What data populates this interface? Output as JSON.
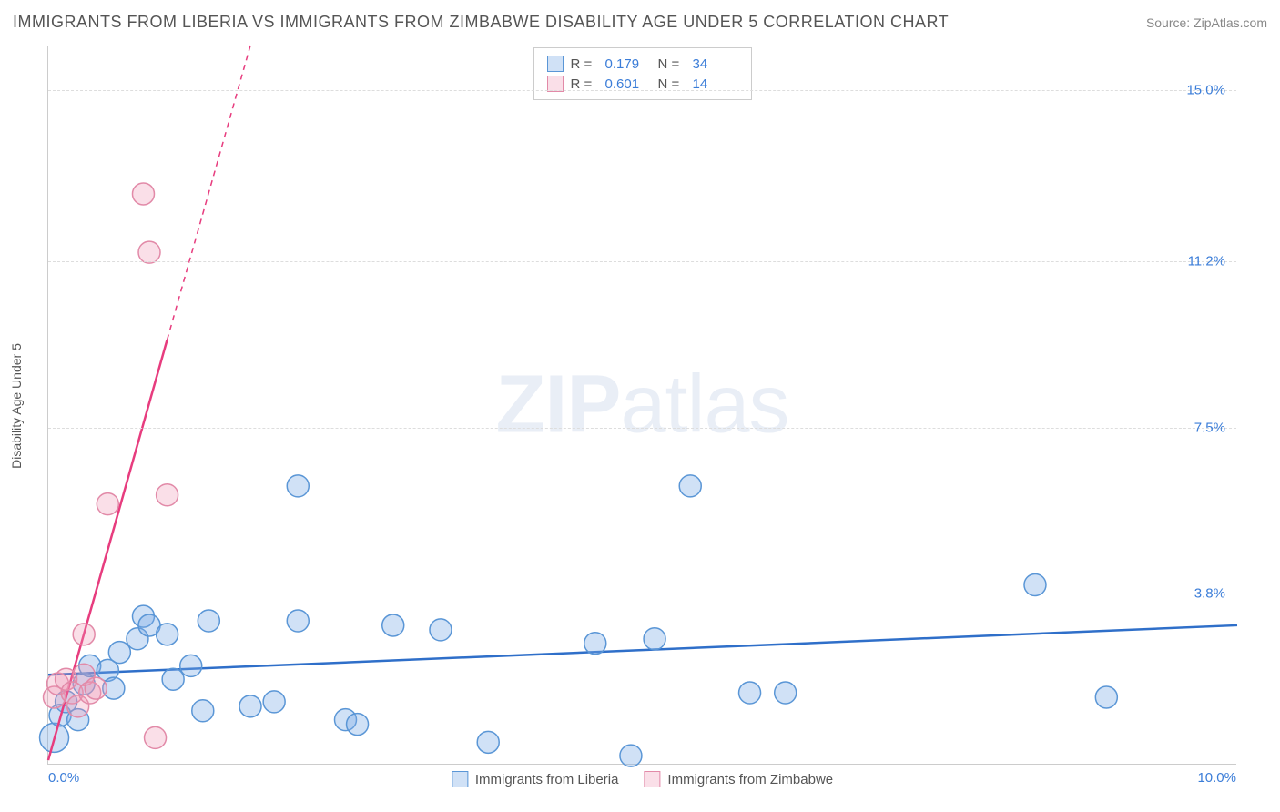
{
  "title": "IMMIGRANTS FROM LIBERIA VS IMMIGRANTS FROM ZIMBABWE DISABILITY AGE UNDER 5 CORRELATION CHART",
  "source": "Source: ZipAtlas.com",
  "watermark_bold": "ZIP",
  "watermark_rest": "atlas",
  "ylabel": "Disability Age Under 5",
  "chart": {
    "type": "scatter",
    "xlim": [
      0,
      10
    ],
    "ylim": [
      0,
      16
    ],
    "x_ticks": [
      {
        "v": 0,
        "label": "0.0%"
      },
      {
        "v": 10,
        "label": "10.0%"
      }
    ],
    "y_ticks": [
      {
        "v": 3.8,
        "label": "3.8%"
      },
      {
        "v": 7.5,
        "label": "7.5%"
      },
      {
        "v": 11.2,
        "label": "11.2%"
      },
      {
        "v": 15.0,
        "label": "15.0%"
      }
    ],
    "grid_color": "#dddddd",
    "axis_color": "#cccccc",
    "background": "#ffffff"
  },
  "series": [
    {
      "name": "Immigrants from Liberia",
      "fill": "rgba(120,170,230,0.35)",
      "stroke": "#5a96d6",
      "line_color": "#2f6fc9",
      "line_width": 2.5,
      "marker_r": 12,
      "R": "0.179",
      "N": "34",
      "trend": {
        "x1": 0,
        "y1": 2.0,
        "x2": 10,
        "y2": 3.1,
        "dashed_after_x": null
      },
      "points": [
        {
          "x": 0.05,
          "y": 0.6,
          "r": 16
        },
        {
          "x": 0.1,
          "y": 1.1
        },
        {
          "x": 0.15,
          "y": 1.4
        },
        {
          "x": 0.25,
          "y": 1.0
        },
        {
          "x": 0.3,
          "y": 1.8
        },
        {
          "x": 0.35,
          "y": 2.2
        },
        {
          "x": 0.5,
          "y": 2.1
        },
        {
          "x": 0.55,
          "y": 1.7
        },
        {
          "x": 0.6,
          "y": 2.5
        },
        {
          "x": 0.75,
          "y": 2.8
        },
        {
          "x": 0.8,
          "y": 3.3
        },
        {
          "x": 0.85,
          "y": 3.1
        },
        {
          "x": 1.0,
          "y": 2.9
        },
        {
          "x": 1.05,
          "y": 1.9
        },
        {
          "x": 1.2,
          "y": 2.2
        },
        {
          "x": 1.3,
          "y": 1.2
        },
        {
          "x": 1.35,
          "y": 3.2
        },
        {
          "x": 1.7,
          "y": 1.3
        },
        {
          "x": 1.9,
          "y": 1.4
        },
        {
          "x": 2.1,
          "y": 3.2
        },
        {
          "x": 2.1,
          "y": 6.2
        },
        {
          "x": 2.5,
          "y": 1.0
        },
        {
          "x": 2.6,
          "y": 0.9
        },
        {
          "x": 2.9,
          "y": 3.1
        },
        {
          "x": 3.3,
          "y": 3.0
        },
        {
          "x": 3.7,
          "y": 0.5
        },
        {
          "x": 4.6,
          "y": 2.7
        },
        {
          "x": 4.9,
          "y": 0.2
        },
        {
          "x": 5.1,
          "y": 2.8
        },
        {
          "x": 5.4,
          "y": 6.2
        },
        {
          "x": 5.9,
          "y": 1.6
        },
        {
          "x": 6.2,
          "y": 1.6
        },
        {
          "x": 8.3,
          "y": 4.0
        },
        {
          "x": 8.9,
          "y": 1.5
        }
      ]
    },
    {
      "name": "Immigrants from Zimbabwe",
      "fill": "rgba(240,150,180,0.30)",
      "stroke": "#e28aa8",
      "line_color": "#e73c7e",
      "line_width": 2.5,
      "marker_r": 12,
      "R": "0.601",
      "N": "14",
      "trend": {
        "x1": 0,
        "y1": 0.1,
        "x2": 1.7,
        "y2": 16.0,
        "dashed_after_x": 1.0
      },
      "points": [
        {
          "x": 0.05,
          "y": 1.5
        },
        {
          "x": 0.08,
          "y": 1.8
        },
        {
          "x": 0.15,
          "y": 1.9
        },
        {
          "x": 0.2,
          "y": 1.6
        },
        {
          "x": 0.25,
          "y": 1.3
        },
        {
          "x": 0.3,
          "y": 2.0
        },
        {
          "x": 0.35,
          "y": 1.6
        },
        {
          "x": 0.3,
          "y": 2.9
        },
        {
          "x": 0.4,
          "y": 1.7
        },
        {
          "x": 0.5,
          "y": 5.8
        },
        {
          "x": 0.8,
          "y": 12.7
        },
        {
          "x": 0.85,
          "y": 11.4
        },
        {
          "x": 0.9,
          "y": 0.6
        },
        {
          "x": 1.0,
          "y": 6.0
        }
      ]
    }
  ],
  "stat_legend": {
    "r_label": "R  =",
    "n_label": "N  ="
  },
  "bottom_legend_label_0": "Immigrants from Liberia",
  "bottom_legend_label_1": "Immigrants from Zimbabwe"
}
